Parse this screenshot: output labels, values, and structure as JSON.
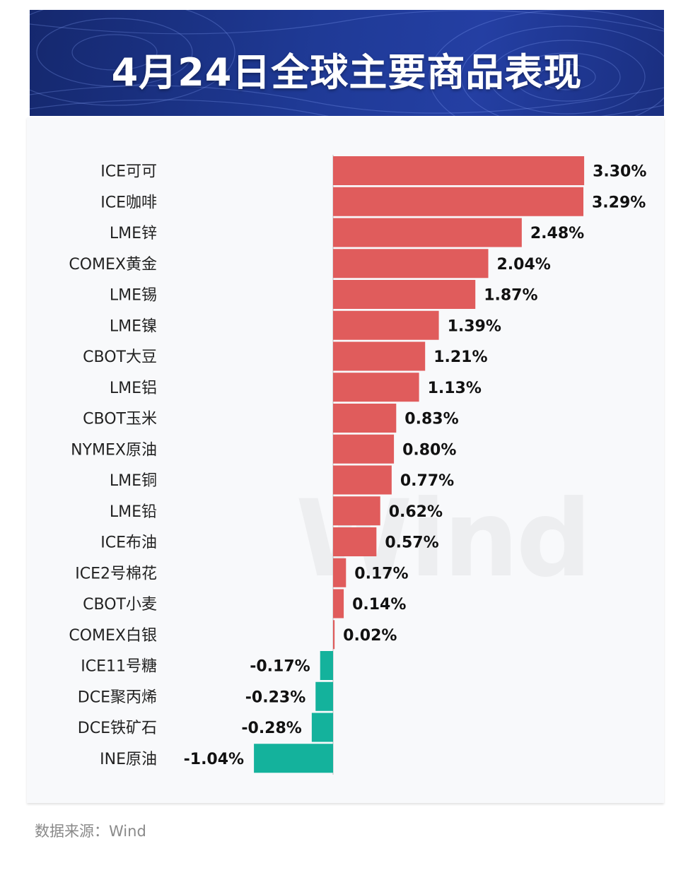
{
  "banner": {
    "title": "4月24日全球主要商品表现"
  },
  "source": "数据来源：Wind",
  "watermark": "Wind",
  "colors": {
    "positive": "#e05c5c",
    "negative": "#14b29c",
    "banner": "#1f3a96"
  },
  "chart_data": {
    "type": "bar",
    "orientation": "horizontal",
    "title": "4月24日全球主要商品表现",
    "categories": [
      "ICE可可",
      "ICE咖啡",
      "LME锌",
      "COMEX黄金",
      "LME锡",
      "LME镍",
      "CBOT大豆",
      "LME铝",
      "CBOT玉米",
      "NYMEX原油",
      "LME铜",
      "LME铅",
      "ICE布油",
      "ICE2号棉花",
      "CBOT小麦",
      "COMEX白银",
      "ICE11号糖",
      "DCE聚丙烯",
      "DCE铁矿石",
      "INE原油"
    ],
    "values": [
      3.3,
      3.29,
      2.48,
      2.04,
      1.87,
      1.39,
      1.21,
      1.13,
      0.83,
      0.8,
      0.77,
      0.62,
      0.57,
      0.17,
      0.14,
      0.02,
      -0.17,
      -0.23,
      -0.28,
      -1.04
    ],
    "labels": [
      "3.30%",
      "3.29%",
      "2.48%",
      "2.04%",
      "1.87%",
      "1.39%",
      "1.21%",
      "1.13%",
      "0.83%",
      "0.80%",
      "0.77%",
      "0.62%",
      "0.57%",
      "0.17%",
      "0.14%",
      "0.02%",
      "-0.17%",
      "-0.23%",
      "-0.28%",
      "-1.04%"
    ],
    "unit": "%",
    "grid": false,
    "legend": "none"
  }
}
